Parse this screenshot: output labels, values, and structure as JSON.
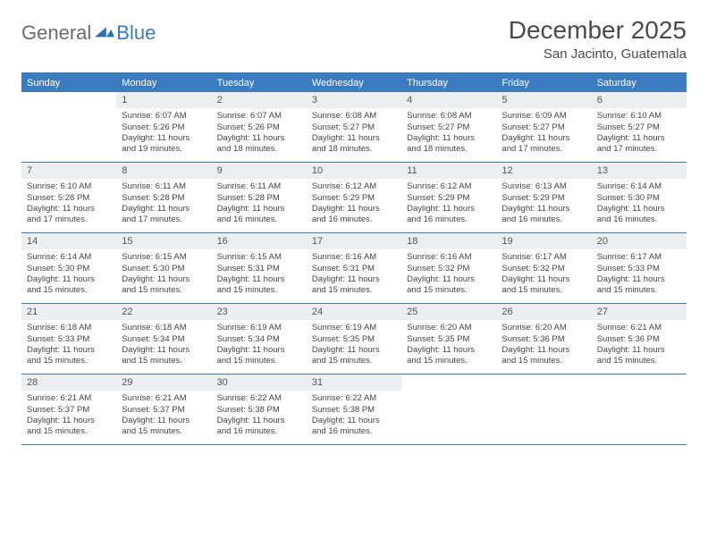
{
  "brand": {
    "part1": "General",
    "part2": "Blue"
  },
  "title": "December 2025",
  "location": "San Jacinto, Guatemala",
  "colors": {
    "accent": "#3b7bbf",
    "header_bg": "#3b7bbf",
    "header_text": "#ffffff",
    "daynum_bg": "#eceef0",
    "text": "#4a4a4a",
    "cell_text": "#444444",
    "logo_gray": "#6b6b6b"
  },
  "day_names": [
    "Sunday",
    "Monday",
    "Tuesday",
    "Wednesday",
    "Thursday",
    "Friday",
    "Saturday"
  ],
  "weeks": [
    [
      null,
      {
        "n": "1",
        "sr": "Sunrise: 6:07 AM",
        "ss": "Sunset: 5:26 PM",
        "dl": "Daylight: 11 hours and 19 minutes."
      },
      {
        "n": "2",
        "sr": "Sunrise: 6:07 AM",
        "ss": "Sunset: 5:26 PM",
        "dl": "Daylight: 11 hours and 18 minutes."
      },
      {
        "n": "3",
        "sr": "Sunrise: 6:08 AM",
        "ss": "Sunset: 5:27 PM",
        "dl": "Daylight: 11 hours and 18 minutes."
      },
      {
        "n": "4",
        "sr": "Sunrise: 6:08 AM",
        "ss": "Sunset: 5:27 PM",
        "dl": "Daylight: 11 hours and 18 minutes."
      },
      {
        "n": "5",
        "sr": "Sunrise: 6:09 AM",
        "ss": "Sunset: 5:27 PM",
        "dl": "Daylight: 11 hours and 17 minutes."
      },
      {
        "n": "6",
        "sr": "Sunrise: 6:10 AM",
        "ss": "Sunset: 5:27 PM",
        "dl": "Daylight: 11 hours and 17 minutes."
      }
    ],
    [
      {
        "n": "7",
        "sr": "Sunrise: 6:10 AM",
        "ss": "Sunset: 5:28 PM",
        "dl": "Daylight: 11 hours and 17 minutes."
      },
      {
        "n": "8",
        "sr": "Sunrise: 6:11 AM",
        "ss": "Sunset: 5:28 PM",
        "dl": "Daylight: 11 hours and 17 minutes."
      },
      {
        "n": "9",
        "sr": "Sunrise: 6:11 AM",
        "ss": "Sunset: 5:28 PM",
        "dl": "Daylight: 11 hours and 16 minutes."
      },
      {
        "n": "10",
        "sr": "Sunrise: 6:12 AM",
        "ss": "Sunset: 5:29 PM",
        "dl": "Daylight: 11 hours and 16 minutes."
      },
      {
        "n": "11",
        "sr": "Sunrise: 6:12 AM",
        "ss": "Sunset: 5:29 PM",
        "dl": "Daylight: 11 hours and 16 minutes."
      },
      {
        "n": "12",
        "sr": "Sunrise: 6:13 AM",
        "ss": "Sunset: 5:29 PM",
        "dl": "Daylight: 11 hours and 16 minutes."
      },
      {
        "n": "13",
        "sr": "Sunrise: 6:14 AM",
        "ss": "Sunset: 5:30 PM",
        "dl": "Daylight: 11 hours and 16 minutes."
      }
    ],
    [
      {
        "n": "14",
        "sr": "Sunrise: 6:14 AM",
        "ss": "Sunset: 5:30 PM",
        "dl": "Daylight: 11 hours and 15 minutes."
      },
      {
        "n": "15",
        "sr": "Sunrise: 6:15 AM",
        "ss": "Sunset: 5:30 PM",
        "dl": "Daylight: 11 hours and 15 minutes."
      },
      {
        "n": "16",
        "sr": "Sunrise: 6:15 AM",
        "ss": "Sunset: 5:31 PM",
        "dl": "Daylight: 11 hours and 15 minutes."
      },
      {
        "n": "17",
        "sr": "Sunrise: 6:16 AM",
        "ss": "Sunset: 5:31 PM",
        "dl": "Daylight: 11 hours and 15 minutes."
      },
      {
        "n": "18",
        "sr": "Sunrise: 6:16 AM",
        "ss": "Sunset: 5:32 PM",
        "dl": "Daylight: 11 hours and 15 minutes."
      },
      {
        "n": "19",
        "sr": "Sunrise: 6:17 AM",
        "ss": "Sunset: 5:32 PM",
        "dl": "Daylight: 11 hours and 15 minutes."
      },
      {
        "n": "20",
        "sr": "Sunrise: 6:17 AM",
        "ss": "Sunset: 5:33 PM",
        "dl": "Daylight: 11 hours and 15 minutes."
      }
    ],
    [
      {
        "n": "21",
        "sr": "Sunrise: 6:18 AM",
        "ss": "Sunset: 5:33 PM",
        "dl": "Daylight: 11 hours and 15 minutes."
      },
      {
        "n": "22",
        "sr": "Sunrise: 6:18 AM",
        "ss": "Sunset: 5:34 PM",
        "dl": "Daylight: 11 hours and 15 minutes."
      },
      {
        "n": "23",
        "sr": "Sunrise: 6:19 AM",
        "ss": "Sunset: 5:34 PM",
        "dl": "Daylight: 11 hours and 15 minutes."
      },
      {
        "n": "24",
        "sr": "Sunrise: 6:19 AM",
        "ss": "Sunset: 5:35 PM",
        "dl": "Daylight: 11 hours and 15 minutes."
      },
      {
        "n": "25",
        "sr": "Sunrise: 6:20 AM",
        "ss": "Sunset: 5:35 PM",
        "dl": "Daylight: 11 hours and 15 minutes."
      },
      {
        "n": "26",
        "sr": "Sunrise: 6:20 AM",
        "ss": "Sunset: 5:36 PM",
        "dl": "Daylight: 11 hours and 15 minutes."
      },
      {
        "n": "27",
        "sr": "Sunrise: 6:21 AM",
        "ss": "Sunset: 5:36 PM",
        "dl": "Daylight: 11 hours and 15 minutes."
      }
    ],
    [
      {
        "n": "28",
        "sr": "Sunrise: 6:21 AM",
        "ss": "Sunset: 5:37 PM",
        "dl": "Daylight: 11 hours and 15 minutes."
      },
      {
        "n": "29",
        "sr": "Sunrise: 6:21 AM",
        "ss": "Sunset: 5:37 PM",
        "dl": "Daylight: 11 hours and 15 minutes."
      },
      {
        "n": "30",
        "sr": "Sunrise: 6:22 AM",
        "ss": "Sunset: 5:38 PM",
        "dl": "Daylight: 11 hours and 16 minutes."
      },
      {
        "n": "31",
        "sr": "Sunrise: 6:22 AM",
        "ss": "Sunset: 5:38 PM",
        "dl": "Daylight: 11 hours and 16 minutes."
      },
      null,
      null,
      null
    ]
  ]
}
